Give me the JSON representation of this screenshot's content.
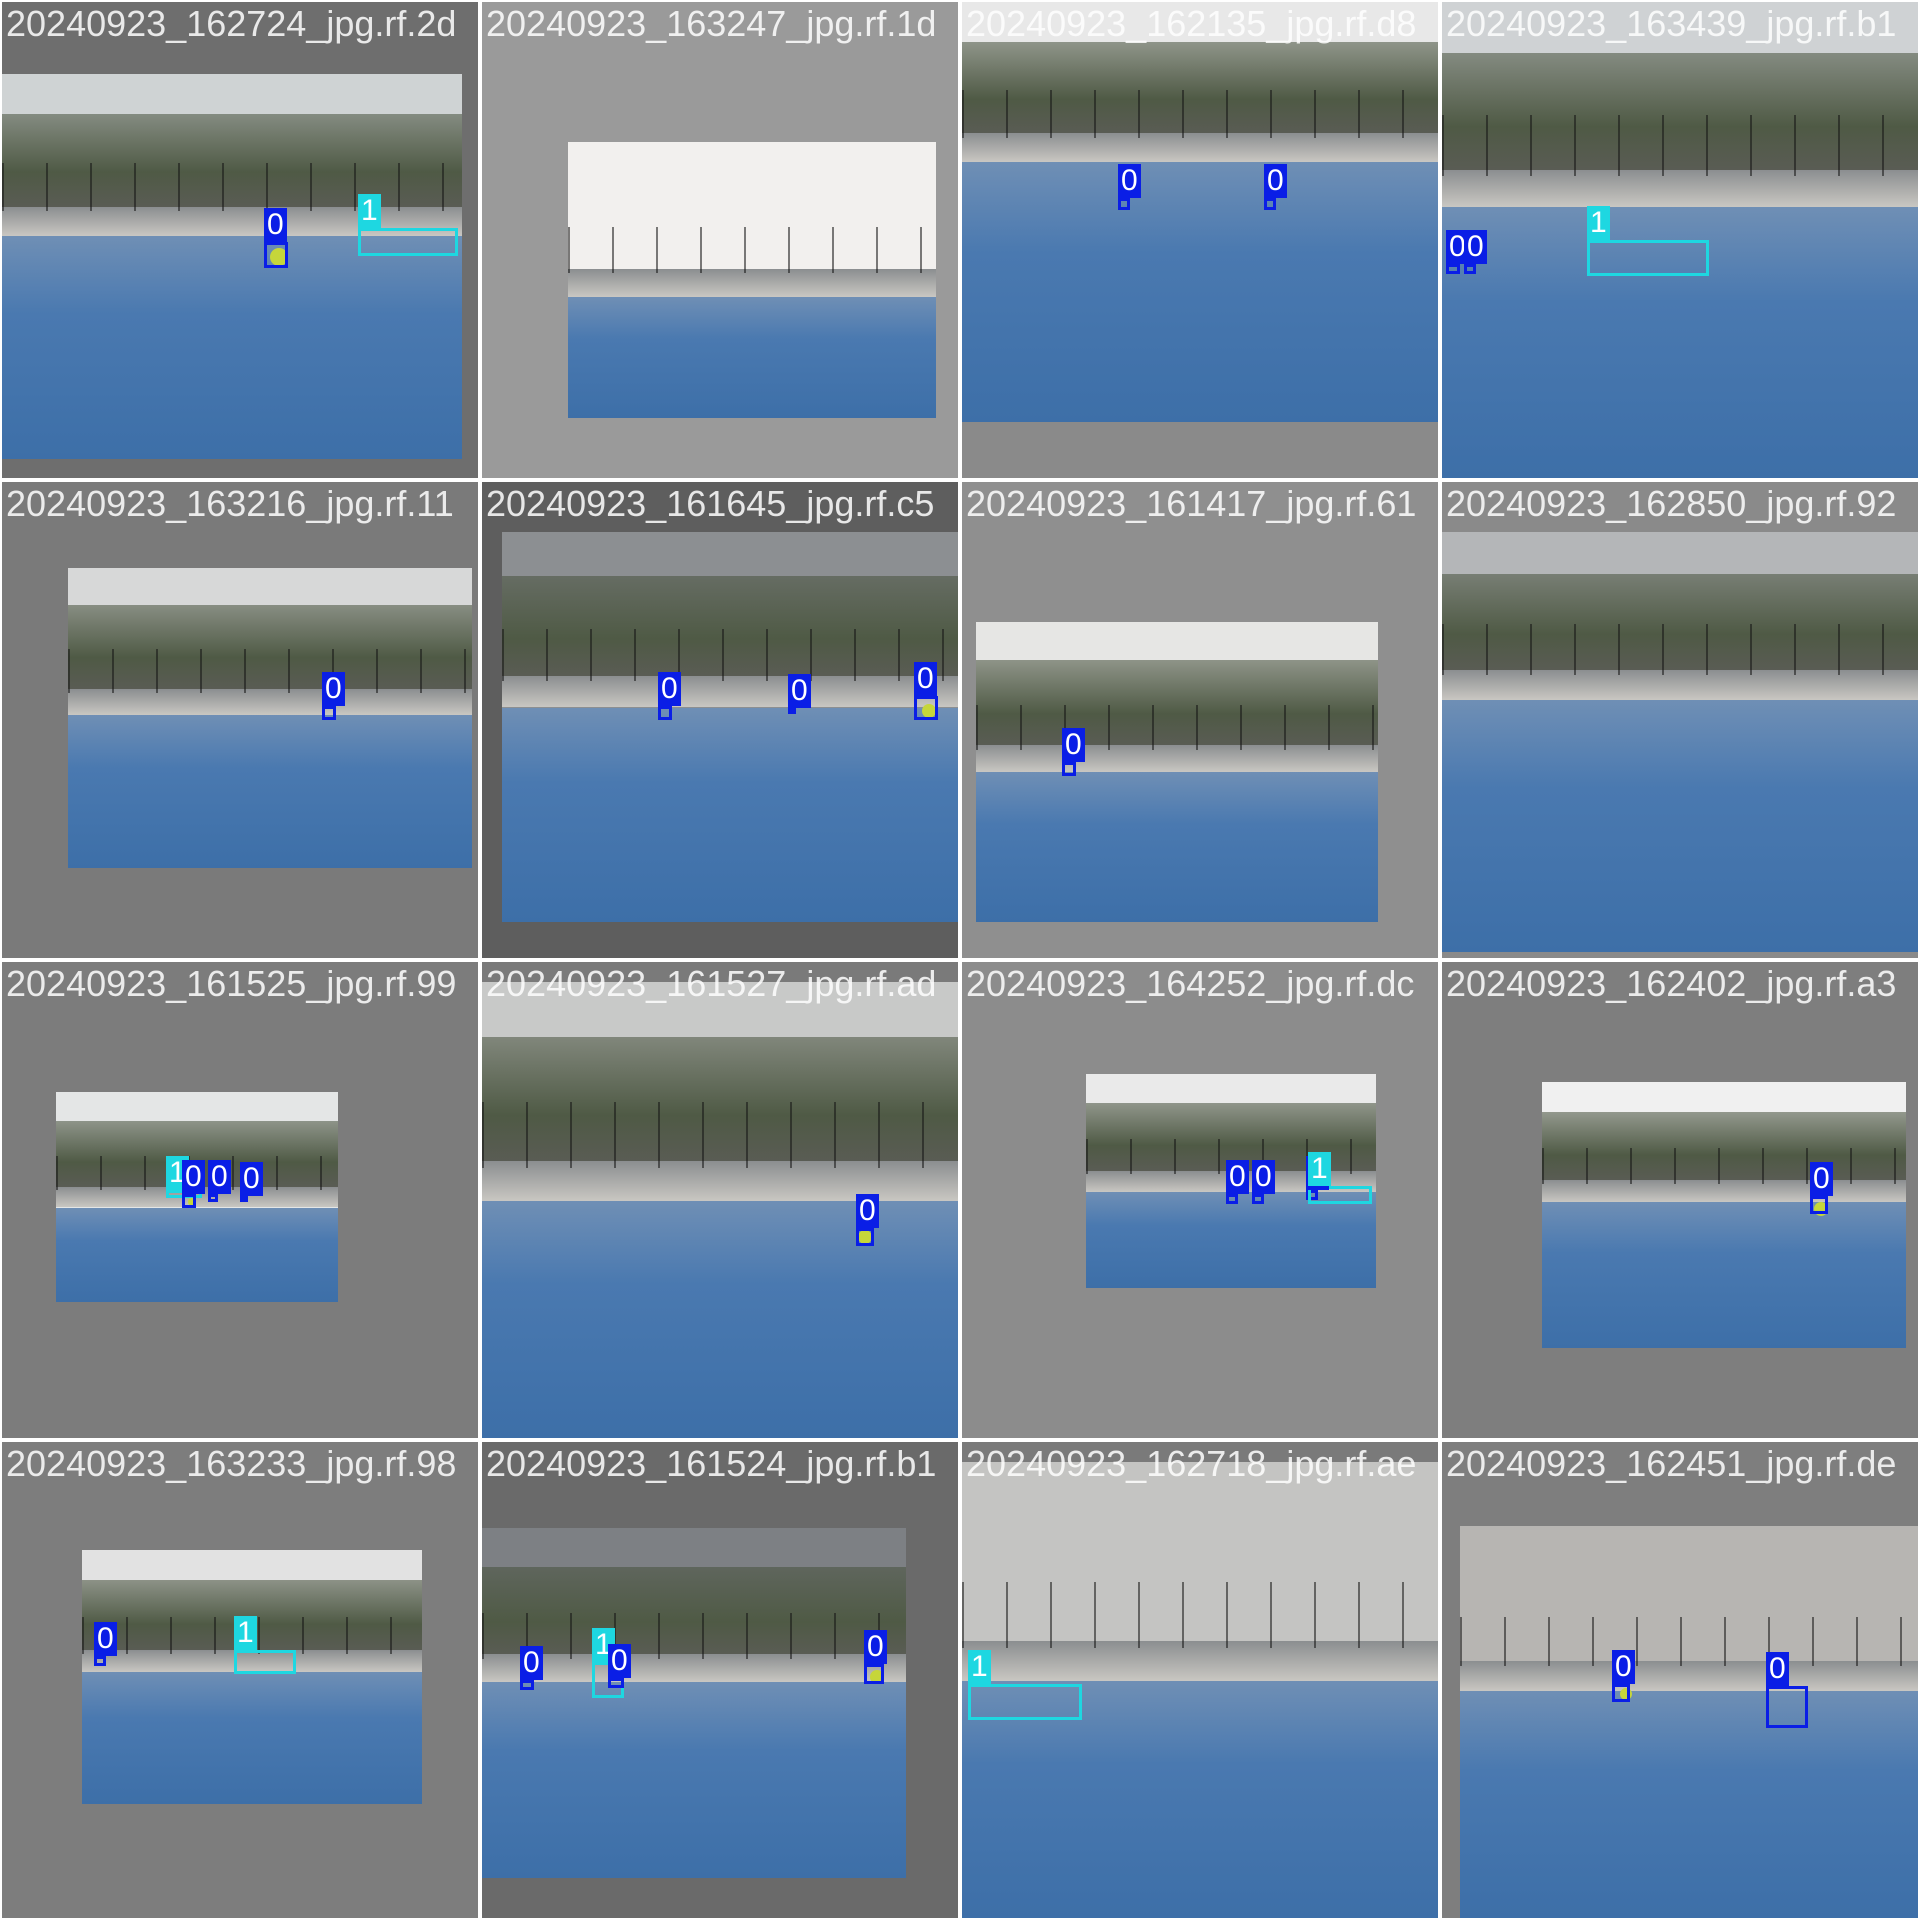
{
  "colors": {
    "class0": "#0a1ee6",
    "class1": "#1ed7e1",
    "court": "#3d6fa8",
    "pad_dark": "#6e6e6e",
    "pad_mid": "#8a8a8a",
    "pad_light": "#9e9e9e"
  },
  "tiles": [
    {
      "caption": "20240923_162724_jpg.rf.2d",
      "labels": [
        "0",
        "1"
      ]
    },
    {
      "caption": "20240923_163247_jpg.rf.1d",
      "labels": []
    },
    {
      "caption": "20240923_162135_jpg.rf.d8",
      "labels": [
        "0",
        "0"
      ]
    },
    {
      "caption": "20240923_163439_jpg.rf.b1",
      "labels": [
        "1",
        "0",
        "0"
      ]
    },
    {
      "caption": "20240923_163216_jpg.rf.11",
      "labels": [
        "0"
      ]
    },
    {
      "caption": "20240923_161645_jpg.rf.c5",
      "labels": [
        "0",
        "0",
        "0"
      ]
    },
    {
      "caption": "20240923_161417_jpg.rf.61",
      "labels": [
        "0"
      ]
    },
    {
      "caption": "20240923_162850_jpg.rf.92",
      "labels": []
    },
    {
      "caption": "20240923_161525_jpg.rf.99",
      "labels": [
        "1",
        "0",
        "0",
        "0"
      ]
    },
    {
      "caption": "20240923_161527_jpg.rf.ad",
      "labels": [
        "0"
      ]
    },
    {
      "caption": "20240923_164252_jpg.rf.dc",
      "labels": [
        "0",
        "0",
        "0",
        "1"
      ]
    },
    {
      "caption": "20240923_162402_jpg.rf.a3",
      "labels": [
        "0"
      ]
    },
    {
      "caption": "20240923_163233_jpg.rf.98",
      "labels": [
        "0",
        "1"
      ]
    },
    {
      "caption": "20240923_161524_jpg.rf.b1",
      "labels": [
        "0",
        "1",
        "0",
        "0"
      ]
    },
    {
      "caption": "20240923_162718_jpg.rf.ae",
      "labels": [
        "1"
      ]
    },
    {
      "caption": "20240923_162451_jpg.rf.de",
      "labels": [
        "0",
        "0"
      ]
    }
  ]
}
